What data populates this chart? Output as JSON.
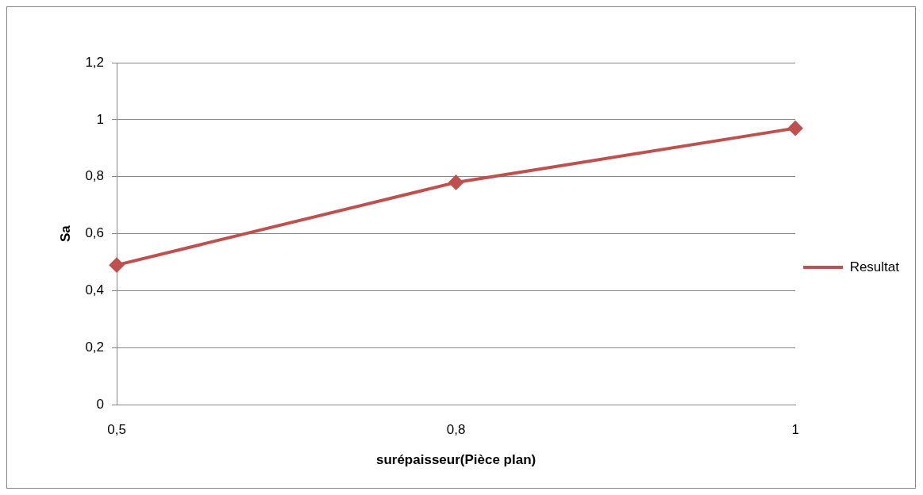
{
  "chart_data": {
    "type": "line",
    "xlabel": "surépaisseur(Pièce plan)",
    "ylabel": "Sa",
    "categories": [
      "0,5",
      "0,8",
      "1"
    ],
    "series": [
      {
        "name": "Resultat",
        "color": "#c0504d",
        "values": [
          0.49,
          0.78,
          0.97
        ]
      }
    ],
    "ylim": [
      0,
      1.2
    ],
    "yticks": [
      0,
      {
        "value": 0.2,
        "label": "0,2"
      },
      {
        "value": 0.4,
        "label": "0,4"
      },
      {
        "value": 0.6,
        "label": "0,6"
      },
      {
        "value": 0.8,
        "label": "0,8"
      },
      1,
      {
        "value": 1.2,
        "label": "1,2"
      }
    ],
    "grid": "y",
    "legend": "right",
    "marker": "diamond",
    "line_style": "solid"
  }
}
